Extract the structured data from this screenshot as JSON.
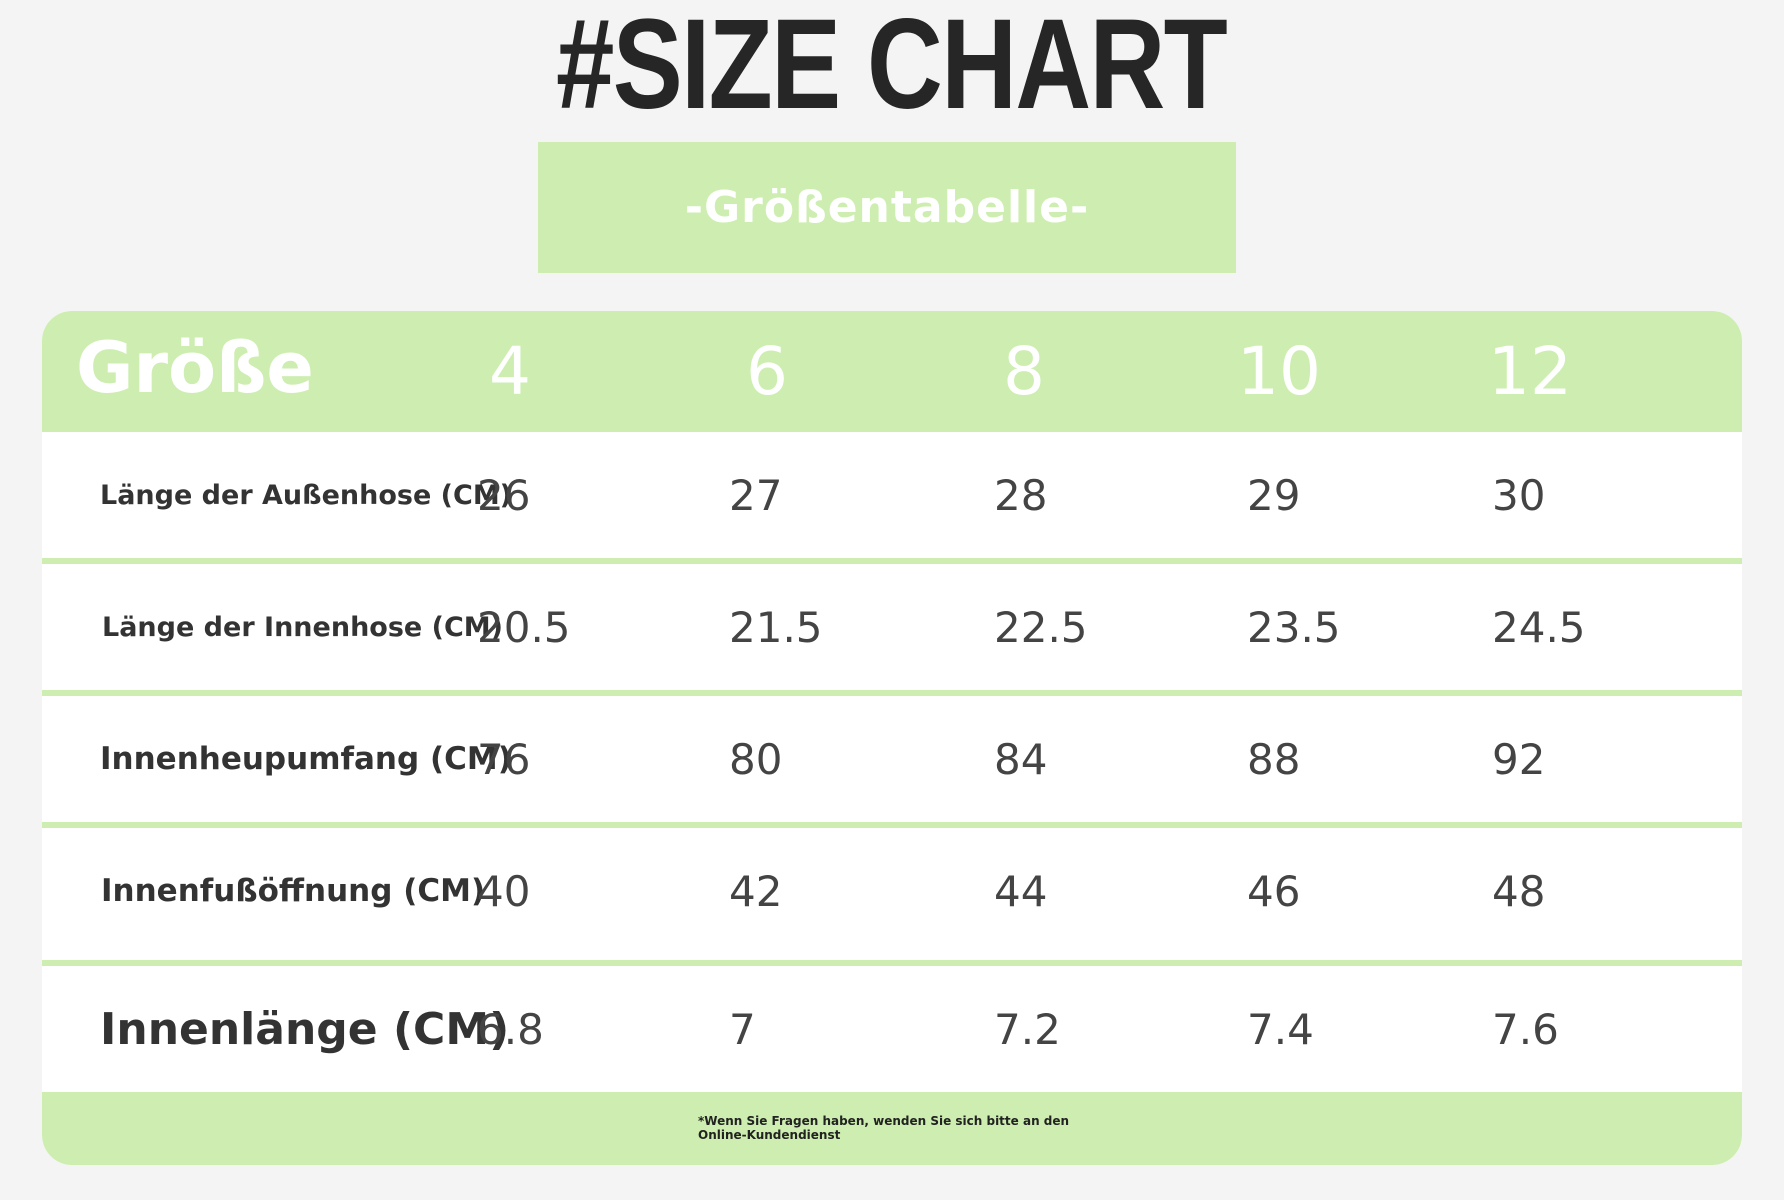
{
  "title": "#SIZE CHART",
  "subtitle": "-Größentabelle-",
  "table": {
    "header_label": "Größe",
    "sizes": [
      "4",
      "6",
      "8",
      "10",
      "12"
    ],
    "rows": [
      {
        "label": "Länge der Außenhose (CM)",
        "values": [
          "26",
          "27",
          "28",
          "29",
          "30"
        ]
      },
      {
        "label": "Länge der Innenhose (CM)",
        "values": [
          "20.5",
          "21.5",
          "22.5",
          "23.5",
          "24.5"
        ]
      },
      {
        "label": "Innenheupumfang (CM)",
        "values": [
          "76",
          "80",
          "84",
          "88",
          "92"
        ]
      },
      {
        "label": "Innenfußöffnung (CM)",
        "values": [
          "40",
          "42",
          "44",
          "46",
          "48"
        ]
      },
      {
        "label": "Innenlänge (CM)",
        "values": [
          "6.8",
          "7",
          "7.2",
          "7.4",
          "7.6"
        ]
      }
    ]
  },
  "footer_note": "*Wenn Sie Fragen haben, wenden Sie sich bitte an den Online-Kundendienst",
  "colors": {
    "accent": "#cdeeb0",
    "title": "#262626",
    "text": "#444444"
  }
}
